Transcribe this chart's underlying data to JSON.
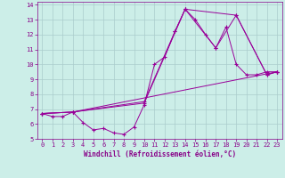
{
  "xlabel": "Windchill (Refroidissement éolien,°C)",
  "bg_color": "#cceee8",
  "grid_color": "#aacccc",
  "line_color": "#990099",
  "xlim": [
    -0.5,
    23.5
  ],
  "ylim": [
    5,
    14.2
  ],
  "xticks": [
    0,
    1,
    2,
    3,
    4,
    5,
    6,
    7,
    8,
    9,
    10,
    11,
    12,
    13,
    14,
    15,
    16,
    17,
    18,
    19,
    20,
    21,
    22,
    23
  ],
  "yticks": [
    5,
    6,
    7,
    8,
    9,
    10,
    11,
    12,
    13,
    14
  ],
  "series1_x": [
    0,
    1,
    2,
    3,
    4,
    5,
    6,
    7,
    8,
    9,
    10,
    11,
    12,
    13,
    14,
    15,
    16,
    17,
    18,
    19,
    20,
    21,
    22,
    23
  ],
  "series1_y": [
    6.7,
    6.5,
    6.5,
    6.8,
    6.1,
    5.6,
    5.7,
    5.4,
    5.3,
    5.8,
    7.3,
    10.0,
    10.5,
    12.2,
    13.7,
    13.0,
    12.0,
    11.1,
    12.5,
    10.0,
    9.3,
    9.3,
    9.5,
    9.5
  ],
  "series2_x": [
    0,
    3,
    10,
    14,
    19,
    22,
    23
  ],
  "series2_y": [
    6.7,
    6.8,
    7.4,
    13.7,
    13.3,
    9.3,
    9.5
  ],
  "series3_x": [
    0,
    3,
    10,
    13,
    14,
    17,
    19,
    22,
    23
  ],
  "series3_y": [
    6.7,
    6.8,
    7.5,
    12.2,
    13.7,
    11.1,
    13.3,
    9.3,
    9.5
  ],
  "series4_x": [
    0,
    3,
    23
  ],
  "series4_y": [
    6.7,
    6.8,
    9.5
  ]
}
